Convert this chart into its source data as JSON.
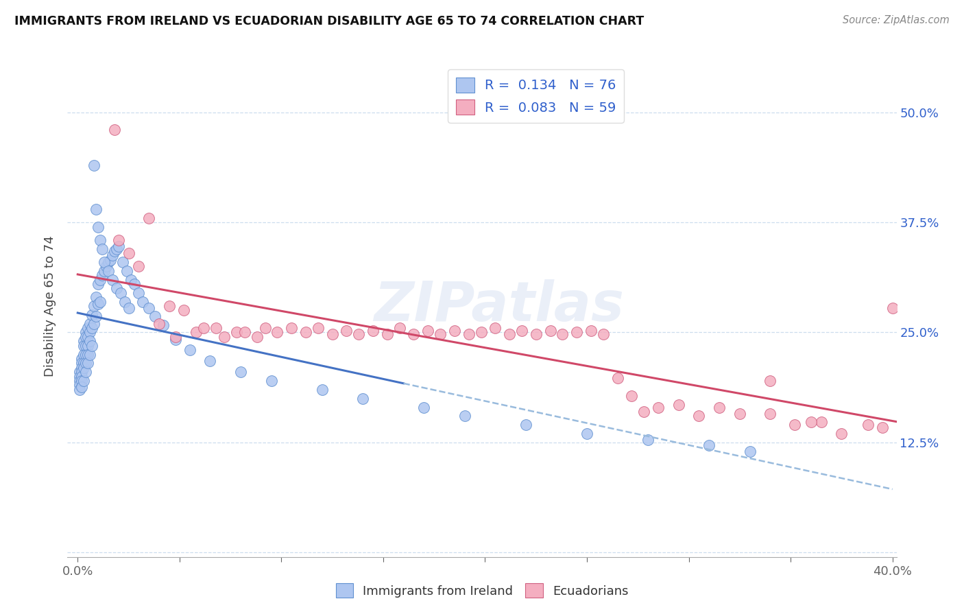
{
  "title": "IMMIGRANTS FROM IRELAND VS ECUADORIAN DISABILITY AGE 65 TO 74 CORRELATION CHART",
  "source": "Source: ZipAtlas.com",
  "ylabel": "Disability Age 65 to 74",
  "blue_R": 0.134,
  "blue_N": 76,
  "pink_R": 0.083,
  "pink_N": 59,
  "blue_color": "#aec6f0",
  "pink_color": "#f4aec0",
  "blue_edge": "#6090d0",
  "pink_edge": "#d06080",
  "reg_blue_color": "#4472c4",
  "reg_pink_color": "#d04868",
  "reg_blue_dashed_color": "#99bbdd",
  "tick_color": "#3060cc",
  "watermark": "ZIPatlas",
  "blue_x": [
    0.001,
    0.001,
    0.001,
    0.001,
    0.001,
    0.002,
    0.002,
    0.002,
    0.002,
    0.002,
    0.002,
    0.002,
    0.003,
    0.003,
    0.003,
    0.003,
    0.003,
    0.003,
    0.004,
    0.004,
    0.004,
    0.004,
    0.004,
    0.004,
    0.005,
    0.005,
    0.005,
    0.005,
    0.005,
    0.006,
    0.006,
    0.006,
    0.006,
    0.007,
    0.007,
    0.007,
    0.008,
    0.008,
    0.009,
    0.009,
    0.01,
    0.01,
    0.011,
    0.011,
    0.012,
    0.013,
    0.014,
    0.015,
    0.016,
    0.017,
    0.018,
    0.019,
    0.02,
    0.022,
    0.024,
    0.026,
    0.028,
    0.03,
    0.032,
    0.035,
    0.038,
    0.042,
    0.048,
    0.055,
    0.065,
    0.08,
    0.095,
    0.12,
    0.14,
    0.17,
    0.19,
    0.22,
    0.25,
    0.28,
    0.31,
    0.33
  ],
  "blue_y": [
    0.205,
    0.2,
    0.195,
    0.19,
    0.185,
    0.22,
    0.215,
    0.21,
    0.205,
    0.2,
    0.195,
    0.188,
    0.24,
    0.235,
    0.225,
    0.215,
    0.21,
    0.195,
    0.25,
    0.245,
    0.235,
    0.225,
    0.215,
    0.205,
    0.255,
    0.245,
    0.235,
    0.225,
    0.215,
    0.26,
    0.25,
    0.24,
    0.225,
    0.27,
    0.255,
    0.235,
    0.28,
    0.26,
    0.29,
    0.268,
    0.305,
    0.282,
    0.31,
    0.285,
    0.315,
    0.32,
    0.325,
    0.33,
    0.332,
    0.338,
    0.342,
    0.345,
    0.348,
    0.33,
    0.32,
    0.31,
    0.305,
    0.295,
    0.285,
    0.278,
    0.268,
    0.258,
    0.242,
    0.23,
    0.218,
    0.205,
    0.195,
    0.185,
    0.175,
    0.165,
    0.155,
    0.145,
    0.135,
    0.128,
    0.122,
    0.115
  ],
  "blue_y_outliers": [
    0.44,
    0.39,
    0.37,
    0.355,
    0.345,
    0.33,
    0.32,
    0.31,
    0.3,
    0.295,
    0.285,
    0.278
  ],
  "blue_x_outliers": [
    0.008,
    0.009,
    0.01,
    0.011,
    0.012,
    0.013,
    0.015,
    0.017,
    0.019,
    0.021,
    0.023,
    0.025
  ],
  "pink_x": [
    0.018,
    0.02,
    0.025,
    0.03,
    0.035,
    0.04,
    0.045,
    0.048,
    0.052,
    0.058,
    0.062,
    0.068,
    0.072,
    0.078,
    0.082,
    0.088,
    0.092,
    0.098,
    0.105,
    0.112,
    0.118,
    0.125,
    0.132,
    0.138,
    0.145,
    0.152,
    0.158,
    0.165,
    0.172,
    0.178,
    0.185,
    0.192,
    0.198,
    0.205,
    0.212,
    0.218,
    0.225,
    0.232,
    0.238,
    0.245,
    0.252,
    0.258,
    0.265,
    0.272,
    0.278,
    0.285,
    0.295,
    0.305,
    0.315,
    0.325,
    0.34,
    0.352,
    0.365,
    0.375,
    0.388,
    0.395,
    0.4,
    0.36,
    0.34
  ],
  "pink_y": [
    0.48,
    0.355,
    0.34,
    0.325,
    0.38,
    0.26,
    0.28,
    0.245,
    0.275,
    0.25,
    0.255,
    0.255,
    0.245,
    0.25,
    0.25,
    0.245,
    0.255,
    0.25,
    0.255,
    0.25,
    0.255,
    0.248,
    0.252,
    0.248,
    0.252,
    0.248,
    0.255,
    0.248,
    0.252,
    0.248,
    0.252,
    0.248,
    0.25,
    0.255,
    0.248,
    0.252,
    0.248,
    0.252,
    0.248,
    0.25,
    0.252,
    0.248,
    0.198,
    0.178,
    0.16,
    0.165,
    0.168,
    0.155,
    0.165,
    0.158,
    0.195,
    0.145,
    0.148,
    0.135,
    0.145,
    0.142,
    0.278,
    0.148,
    0.158
  ],
  "xlim": [
    0.0,
    0.402
  ],
  "ylim": [
    -0.005,
    0.565
  ],
  "xticks": [
    0.0,
    0.05,
    0.1,
    0.15,
    0.2,
    0.25,
    0.3,
    0.35,
    0.4
  ],
  "yticks": [
    0.0,
    0.125,
    0.25,
    0.375,
    0.5
  ],
  "yticklabels_right": [
    "",
    "12.5%",
    "25.0%",
    "37.5%",
    "50.0%"
  ]
}
